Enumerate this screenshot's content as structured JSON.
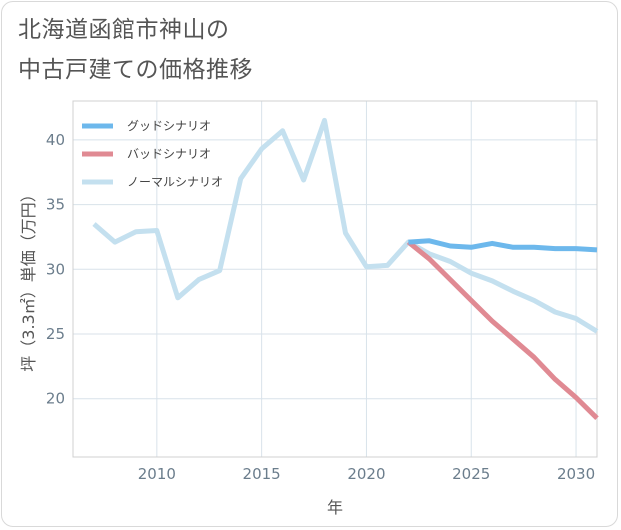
{
  "chart_data": {
    "type": "line",
    "title_line1": "北海道函館市神山の",
    "title_line2": "中古戸建ての価格推移",
    "xlabel": "年",
    "ylabel": "坪（3.3㎡）単価（万円）",
    "xlim": [
      2006,
      2031
    ],
    "ylim": [
      15.5,
      43
    ],
    "x_ticks": [
      2010,
      2015,
      2020,
      2025,
      2030
    ],
    "y_ticks": [
      20,
      25,
      30,
      35,
      40
    ],
    "legend_position": "top-left",
    "series": [
      {
        "name": "グッドシナリオ",
        "color": "#6db8ec",
        "x": [
          2022,
          2023,
          2024,
          2025,
          2026,
          2027,
          2028,
          2029,
          2030,
          2031
        ],
        "values": [
          32.1,
          32.2,
          31.8,
          31.7,
          32.0,
          31.7,
          31.7,
          31.6,
          31.6,
          31.5
        ]
      },
      {
        "name": "バッドシナリオ",
        "color": "#e08a93",
        "x": [
          2022,
          2023,
          2024,
          2025,
          2026,
          2027,
          2028,
          2029,
          2030,
          2031
        ],
        "values": [
          32.1,
          30.8,
          29.2,
          27.6,
          26.0,
          24.6,
          23.2,
          21.5,
          20.1,
          18.5
        ]
      },
      {
        "name": "ノーマルシナリオ",
        "color": "#c4e0ef",
        "x": [
          2007,
          2008,
          2009,
          2010,
          2011,
          2012,
          2013,
          2014,
          2015,
          2016,
          2017,
          2018,
          2019,
          2020,
          2021,
          2022,
          2023,
          2024,
          2025,
          2026,
          2027,
          2028,
          2029,
          2030,
          2031
        ],
        "values": [
          33.5,
          32.1,
          32.9,
          33.0,
          27.8,
          29.2,
          29.9,
          37.0,
          39.3,
          40.7,
          36.9,
          41.5,
          32.8,
          30.2,
          30.3,
          32.1,
          31.2,
          30.6,
          29.7,
          29.1,
          28.3,
          27.6,
          26.7,
          26.2,
          25.2
        ]
      }
    ]
  }
}
